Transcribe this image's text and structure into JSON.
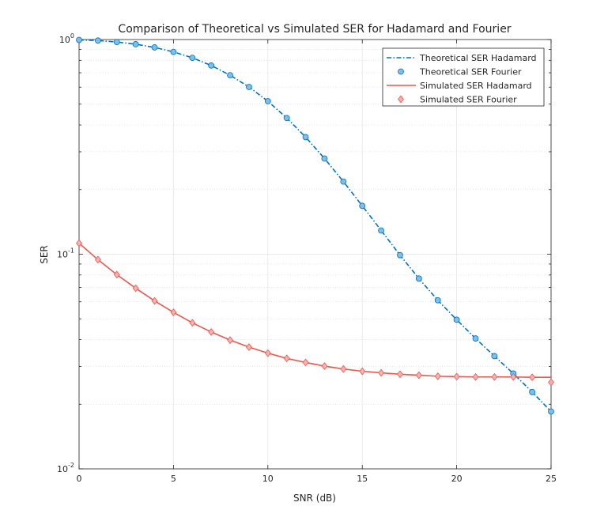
{
  "chart_data": {
    "type": "line",
    "title": "Comparison of Theoretical vs Simulated SER for Hadamard and Fourier",
    "xlabel": "SNR (dB)",
    "ylabel": "SER",
    "xlim": [
      0,
      25
    ],
    "ylim": [
      0.01,
      1
    ],
    "yscale": "log",
    "grid": true,
    "legend_position": "top-right",
    "x_ticks": [
      "0",
      "5",
      "10",
      "15",
      "20",
      "25"
    ],
    "y_ticks": [
      {
        "base": "10",
        "exp": "0"
      },
      {
        "base": "10",
        "exp": "-1"
      },
      {
        "base": "10",
        "exp": "-2"
      }
    ],
    "x": [
      0,
      1,
      2,
      3,
      4,
      5,
      6,
      7,
      8,
      9,
      10,
      11,
      12,
      13,
      14,
      15,
      16,
      17,
      18,
      19,
      20,
      21,
      22,
      23,
      24,
      25
    ],
    "series": [
      {
        "name": "Theoretical SER Hadamard",
        "style": "dash-dot line",
        "color": "#0072BD",
        "values": [
          0.996,
          0.989,
          0.974,
          0.951,
          0.919,
          0.876,
          0.822,
          0.757,
          0.682,
          0.601,
          0.516,
          0.431,
          0.351,
          0.279,
          0.218,
          0.168,
          0.129,
          0.099,
          0.077,
          0.061,
          0.0495,
          0.0405,
          0.0335,
          0.0278,
          0.0228,
          0.0185
        ]
      },
      {
        "name": "Theoretical SER Fourier",
        "style": "circle markers",
        "color": "#0072BD",
        "fill": "#7fbfe6",
        "values": [
          0.996,
          0.989,
          0.974,
          0.951,
          0.919,
          0.876,
          0.822,
          0.757,
          0.682,
          0.601,
          0.516,
          0.431,
          0.351,
          0.279,
          0.218,
          0.168,
          0.129,
          0.099,
          0.077,
          0.061,
          0.0495,
          0.0405,
          0.0335,
          0.0278,
          0.0228,
          0.0185
        ]
      },
      {
        "name": "Simulated SER Hadamard",
        "style": "solid line",
        "color": "#E8584F",
        "values": [
          0.1125,
          0.0943,
          0.0803,
          0.0694,
          0.0606,
          0.0536,
          0.0479,
          0.0434,
          0.0398,
          0.0369,
          0.0346,
          0.0327,
          0.0313,
          0.0301,
          0.0292,
          0.0285,
          0.028,
          0.0276,
          0.0273,
          0.027,
          0.0269,
          0.0268,
          0.0268,
          0.0268,
          0.0267,
          0.0267
        ]
      },
      {
        "name": "Simulated SER Fourier",
        "style": "diamond markers",
        "color": "#E8584F",
        "fill": "#f5b3ae",
        "values": [
          0.1125,
          0.0943,
          0.0803,
          0.0694,
          0.0606,
          0.0536,
          0.0479,
          0.0434,
          0.0398,
          0.0369,
          0.0346,
          0.0327,
          0.0313,
          0.0301,
          0.0292,
          0.0285,
          0.028,
          0.0276,
          0.0273,
          0.027,
          0.0269,
          0.0268,
          0.0268,
          0.0268,
          0.0267,
          0.0253
        ]
      }
    ]
  }
}
